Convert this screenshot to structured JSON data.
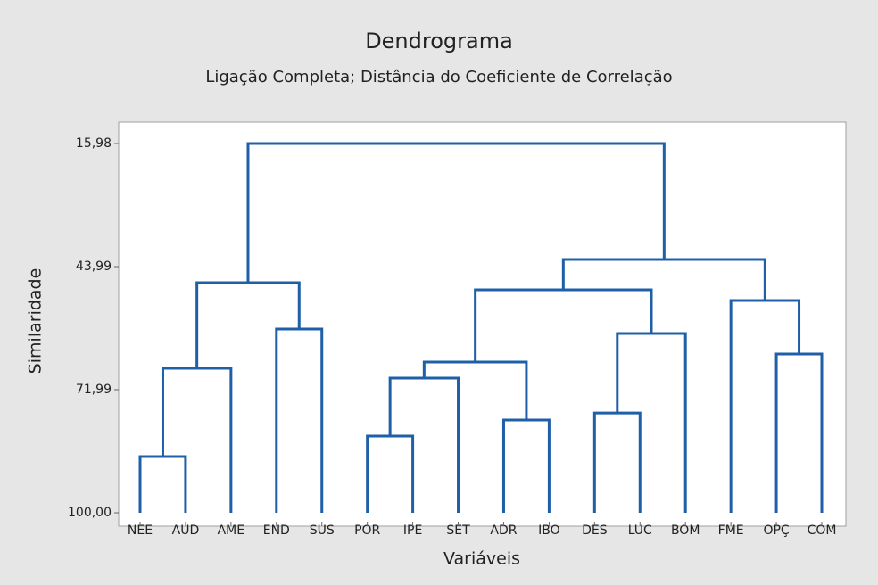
{
  "chart_data": {
    "type": "dendrogram",
    "title": "Dendrograma",
    "subtitle": "Ligação Completa; Distância do Coeficiente de Correlação",
    "x_label": "Variáveis",
    "y_label": "Similaridade",
    "categories": [
      "NEE",
      "AUD",
      "AME",
      "END",
      "SUS",
      "POR",
      "IPE",
      "SET",
      "ADR",
      "IBO",
      "DES",
      "LUC",
      "BOM",
      "FME",
      "OPÇ",
      "COM"
    ],
    "leaf_similarity": 100,
    "merges": [
      {
        "children": [
          0,
          1
        ],
        "value": 87.22
      },
      {
        "children": [
          16,
          2
        ],
        "value": 67.13
      },
      {
        "children": [
          3,
          4
        ],
        "value": 58.2
      },
      {
        "children": [
          17,
          18
        ],
        "value": 47.64
      },
      {
        "children": [
          5,
          6
        ],
        "value": 82.55
      },
      {
        "children": [
          8,
          9
        ],
        "value": 78.9
      },
      {
        "children": [
          20,
          7
        ],
        "value": 69.36
      },
      {
        "children": [
          22,
          21
        ],
        "value": 65.71
      },
      {
        "children": [
          10,
          11
        ],
        "value": 77.28
      },
      {
        "children": [
          24,
          12
        ],
        "value": 59.21
      },
      {
        "children": [
          23,
          25
        ],
        "value": 49.27
      },
      {
        "children": [
          14,
          15
        ],
        "value": 63.88
      },
      {
        "children": [
          13,
          27
        ],
        "value": 51.7
      },
      {
        "children": [
          26,
          28
        ],
        "value": 42.37
      },
      {
        "children": [
          19,
          29
        ],
        "value": 15.98
      }
    ],
    "color": "#1f5fa8",
    "ylim": [
      103.04,
      11.11
    ],
    "yticks": [
      {
        "value": 15.98,
        "label": "15,98"
      },
      {
        "value": 43.99,
        "label": "43,99"
      },
      {
        "value": 71.99,
        "label": "71,99"
      },
      {
        "value": 100,
        "label": "100,00"
      }
    ]
  }
}
